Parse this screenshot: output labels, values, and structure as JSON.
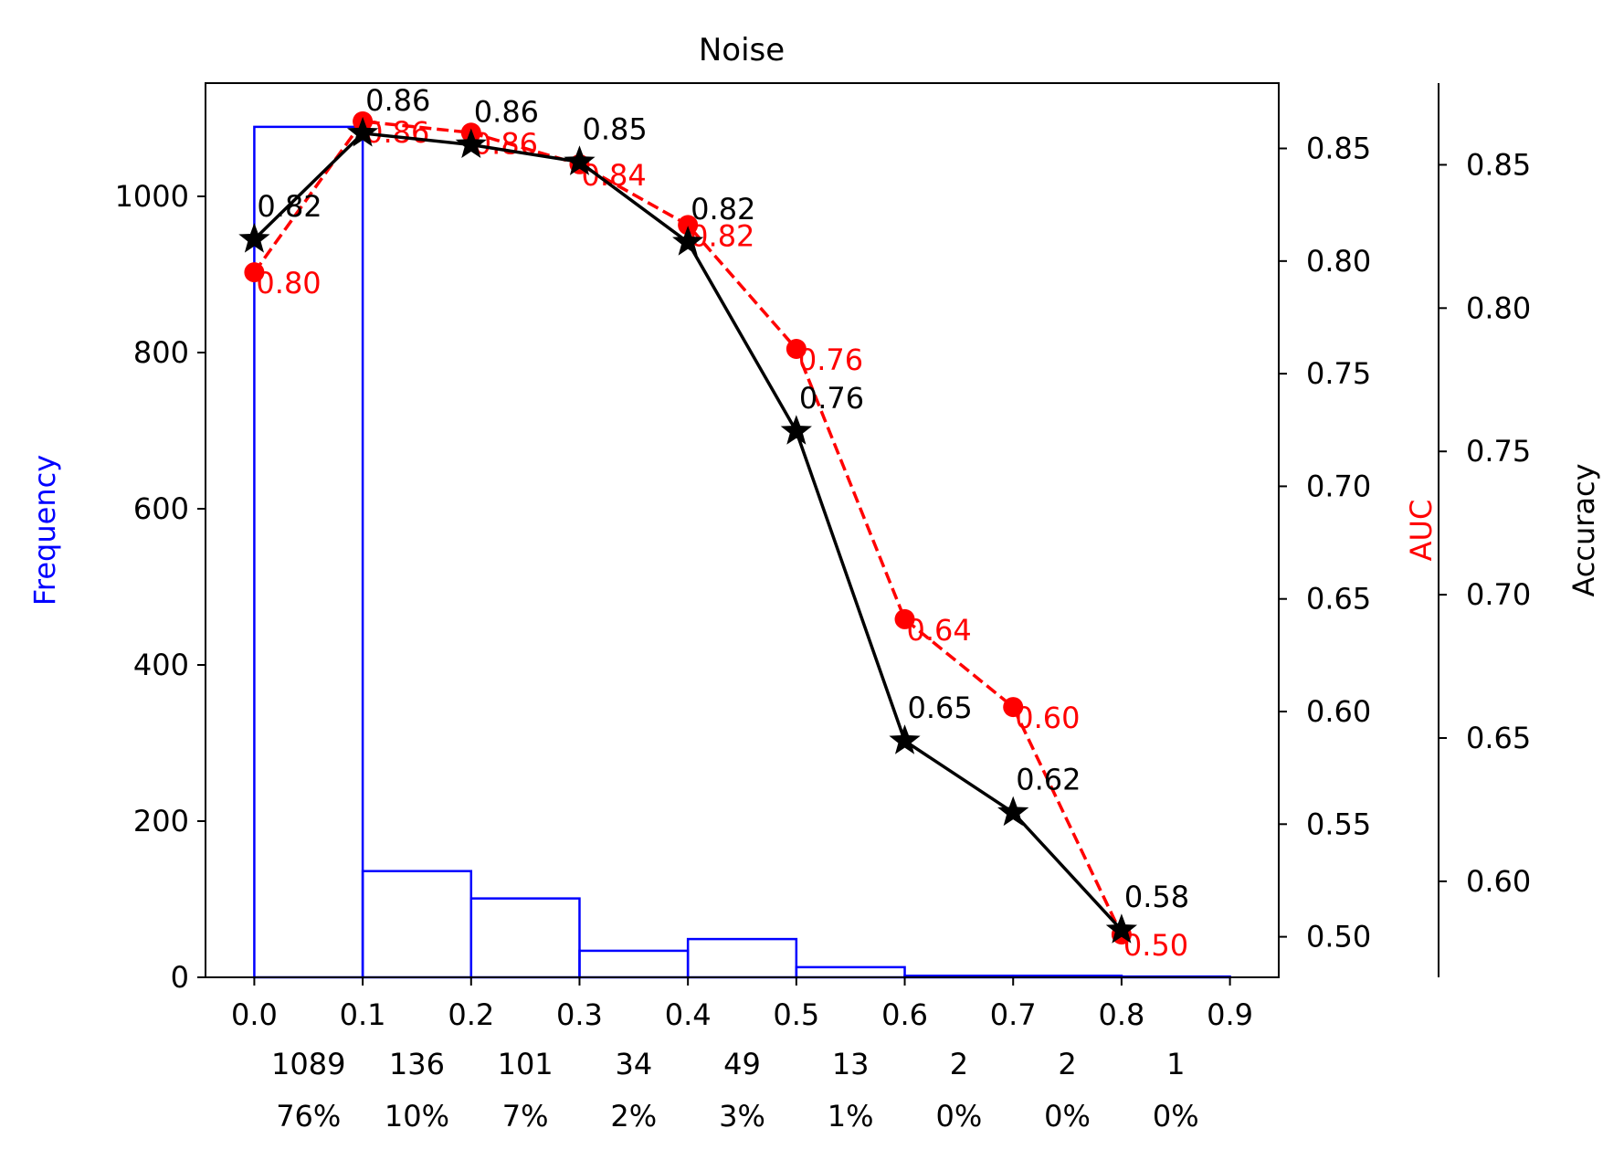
{
  "chart_data": {
    "type": "bar",
    "title": "Noise",
    "x_ticks": [
      "0.0",
      "0.1",
      "0.2",
      "0.3",
      "0.4",
      "0.5",
      "0.6",
      "0.7",
      "0.8",
      "0.9"
    ],
    "xlim": [
      -0.045,
      0.945
    ],
    "histogram": {
      "ylabel": "Frequency",
      "color": "#0000ff",
      "bin_edges": [
        0.0,
        0.1,
        0.2,
        0.3,
        0.4,
        0.5,
        0.6,
        0.7,
        0.8,
        0.9
      ],
      "counts": [
        1089,
        136,
        101,
        34,
        49,
        13,
        2,
        2,
        1
      ],
      "count_labels": [
        "1089",
        "136",
        "101",
        "34",
        "49",
        "13",
        "2",
        "2",
        "1"
      ],
      "percent_labels": [
        "76%",
        "10%",
        "7%",
        "2%",
        "3%",
        "1%",
        "0%",
        "0%",
        "0%"
      ],
      "ylim": [
        0,
        1145
      ],
      "y_ticks": [
        "0",
        "200",
        "400",
        "600",
        "800",
        "1000"
      ]
    },
    "series": [
      {
        "name": "AUC",
        "axis": "right-inner",
        "color": "#ff0000",
        "line_style": "dashed",
        "marker": "circle",
        "x": [
          0.0,
          0.1,
          0.2,
          0.3,
          0.4,
          0.5,
          0.6,
          0.7,
          0.8
        ],
        "values": [
          0.795,
          0.862,
          0.857,
          0.843,
          0.816,
          0.761,
          0.641,
          0.602,
          0.501
        ],
        "labels": [
          "0.80",
          "0.86",
          "0.86",
          "0.84",
          "0.82",
          "0.76",
          "0.64",
          "0.60",
          "0.50"
        ],
        "ylim": [
          0.482,
          0.879
        ],
        "y_ticks": [
          "0.50",
          "0.55",
          "0.60",
          "0.65",
          "0.70",
          "0.75",
          "0.80",
          "0.85"
        ]
      },
      {
        "name": "Accuracy",
        "axis": "right-outer",
        "color": "#000000",
        "line_style": "solid",
        "marker": "star",
        "x": [
          0.0,
          0.1,
          0.2,
          0.3,
          0.4,
          0.5,
          0.6,
          0.7,
          0.8
        ],
        "values": [
          0.824,
          0.861,
          0.857,
          0.851,
          0.823,
          0.757,
          0.649,
          0.624,
          0.583
        ],
        "labels": [
          "0.82",
          "0.86",
          "0.86",
          "0.85",
          "0.82",
          "0.76",
          "0.65",
          "0.62",
          "0.58"
        ],
        "ylim": [
          0.5665,
          0.8785
        ],
        "y_ticks": [
          "0.60",
          "0.65",
          "0.70",
          "0.75",
          "0.80",
          "0.85"
        ]
      }
    ],
    "grid": false,
    "legend": "none"
  }
}
